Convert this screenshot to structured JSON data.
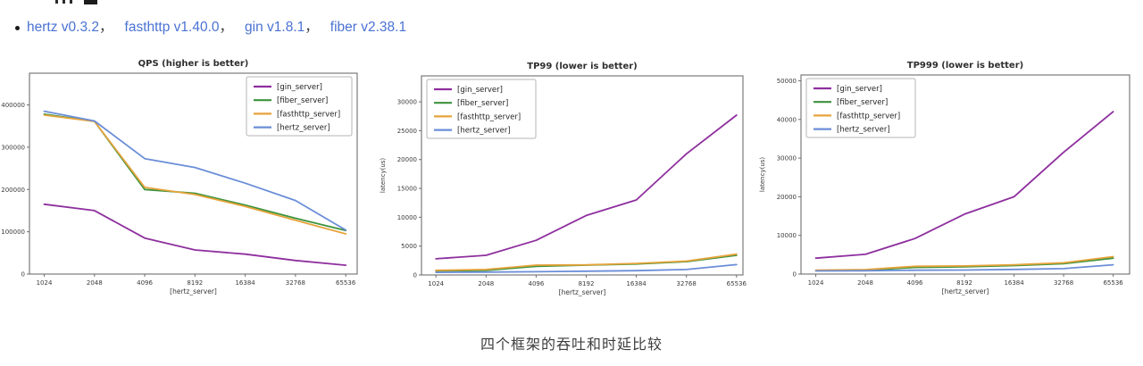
{
  "deps_line": {
    "separator": "，",
    "link_color": "#4a72d3",
    "items": [
      {
        "label": "hertz v0.3.2"
      },
      {
        "label": "fasthttp v1.40.0"
      },
      {
        "label": "gin v1.8.1"
      },
      {
        "label": "fiber v2.38.1"
      }
    ]
  },
  "caption": {
    "text": "四个框架的吞吐和时延比较"
  },
  "chart_data": [
    {
      "type": "line",
      "title": "QPS (higher is better)",
      "xlabel": "[hertz_server]",
      "ylabel": "",
      "x": [
        1024,
        2048,
        4096,
        8192,
        16384,
        32768,
        65536
      ],
      "yticks": [
        0,
        100000,
        200000,
        300000,
        400000
      ],
      "ylim": [
        0,
        475000
      ],
      "grid": false,
      "legend_position": "upper right",
      "series": [
        {
          "name": "[gin_server]",
          "color": "#8e2f9e",
          "values": [
            165000,
            150000,
            85000,
            57000,
            47000,
            32000,
            21000
          ]
        },
        {
          "name": "[fiber_server]",
          "color": "#3d933d",
          "values": [
            378000,
            361000,
            200000,
            191000,
            163000,
            132000,
            103000
          ]
        },
        {
          "name": "[fasthttp_server]",
          "color": "#e7a33b",
          "values": [
            376000,
            361000,
            205000,
            188000,
            160000,
            127000,
            95000
          ]
        },
        {
          "name": "[hertz_server]",
          "color": "#6b8ed8",
          "values": [
            385000,
            362000,
            273000,
            252000,
            215000,
            174000,
            104000
          ]
        }
      ]
    },
    {
      "type": "line",
      "title": "TP99 (lower is better)",
      "xlabel": "[hertz_server]",
      "ylabel": "latency(us)",
      "x": [
        1024,
        2048,
        4096,
        8192,
        16384,
        32768,
        65536
      ],
      "yticks": [
        0,
        5000,
        10000,
        15000,
        20000,
        25000,
        30000
      ],
      "ylim": [
        0,
        34500
      ],
      "grid": false,
      "legend_position": "upper left",
      "series": [
        {
          "name": "[gin_server]",
          "color": "#8e2f9e",
          "values": [
            2800,
            3400,
            6000,
            10300,
            13000,
            21000,
            27700
          ]
        },
        {
          "name": "[fiber_server]",
          "color": "#3d933d",
          "values": [
            700,
            800,
            1500,
            1700,
            1900,
            2300,
            3400
          ]
        },
        {
          "name": "[fasthttp_server]",
          "color": "#e7a33b",
          "values": [
            800,
            950,
            1700,
            1750,
            2000,
            2400,
            3600
          ]
        },
        {
          "name": "[hertz_server]",
          "color": "#6b8ed8",
          "values": [
            450,
            500,
            550,
            650,
            750,
            950,
            1800
          ]
        }
      ]
    },
    {
      "type": "line",
      "title": "TP999 (lower is better)",
      "xlabel": "[hertz_server]",
      "ylabel": "latency(us)",
      "x": [
        1024,
        2048,
        4096,
        8192,
        16384,
        32768,
        65536
      ],
      "yticks": [
        0,
        10000,
        20000,
        30000,
        40000,
        50000
      ],
      "ylim": [
        0,
        51500
      ],
      "grid": false,
      "legend_position": "upper left",
      "series": [
        {
          "name": "[gin_server]",
          "color": "#8e2f9e",
          "values": [
            4100,
            5100,
            9200,
            15500,
            20000,
            31500,
            42000
          ]
        },
        {
          "name": "[fiber_server]",
          "color": "#3d933d",
          "values": [
            900,
            1000,
            1700,
            1900,
            2200,
            2700,
            4100
          ]
        },
        {
          "name": "[fasthttp_server]",
          "color": "#e7a33b",
          "values": [
            1000,
            1150,
            2000,
            2100,
            2400,
            2900,
            4500
          ]
        },
        {
          "name": "[hertz_server]",
          "color": "#6b8ed8",
          "values": [
            800,
            850,
            1000,
            1050,
            1200,
            1400,
            2400
          ]
        }
      ]
    }
  ]
}
